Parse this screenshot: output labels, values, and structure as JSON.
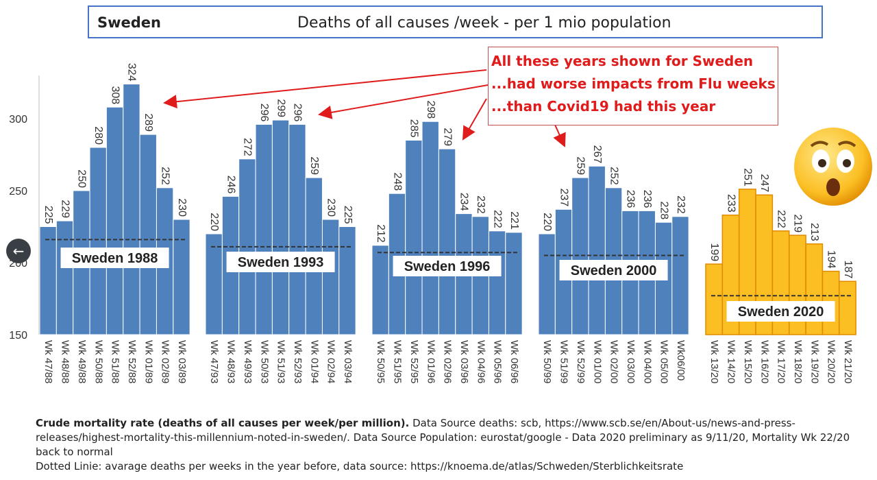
{
  "title": {
    "country": "Sweden",
    "text": "Deaths of all causes /week  - per 1  mio  population"
  },
  "annotation": {
    "lines": [
      "All these years shown for Sweden",
      "...had worse impacts from Flu weeks",
      "...than Covid19 had this year"
    ]
  },
  "colors": {
    "bar_blue": "#4f81bd",
    "bar_yellow": "#fbbf24",
    "annotation_red": "#e01b1b",
    "title_border": "#4472c4"
  },
  "chart_data": {
    "type": "bar",
    "title": "Deaths of all causes /week  - per 1  mio  population",
    "ylim": [
      150,
      330
    ],
    "yticks": [
      150,
      200,
      250,
      300
    ],
    "groups": [
      {
        "name": "Sweden 1988",
        "color": "#4f81bd",
        "average": 216,
        "categories": [
          "Wk 47/88",
          "Wk 48/88",
          "Wk 49/88",
          "Wk 50/88",
          "Wk 51/88",
          "Wk 52/88",
          "Wk 01/89",
          "Wk 02/89",
          "Wk 03/89"
        ],
        "values": [
          225,
          229,
          250,
          280,
          308,
          324,
          289,
          252,
          230
        ]
      },
      {
        "name": "Sweden 1993",
        "color": "#4f81bd",
        "average": 211,
        "categories": [
          "Wk 47/93",
          "Wk 48/93",
          "Wk 49/93",
          "Wk 50/93",
          "Wk 51/93",
          "Wk 52/93",
          "Wk 01/94",
          "Wk 02/94",
          "Wk 03/94"
        ],
        "values": [
          220,
          246,
          272,
          296,
          299,
          296,
          259,
          230,
          225
        ]
      },
      {
        "name": "Sweden 1996",
        "color": "#4f81bd",
        "average": 207,
        "categories": [
          "Wk 50/95",
          "Wk 51/95",
          "Wk 52/95",
          "Wk 01/96",
          "Wk 02/96",
          "Wk 03/96",
          "Wk 04/96",
          "Wk 05/96",
          "Wk 06/96"
        ],
        "values": [
          212,
          248,
          285,
          298,
          279,
          234,
          232,
          222,
          221
        ]
      },
      {
        "name": "Sweden 2000",
        "color": "#4f81bd",
        "average": 205,
        "categories": [
          "Wk 50/99",
          "Wk 51/99",
          "Wk 52/99",
          "Wk 01/00",
          "Wk 02/00",
          "Wk 03/00",
          "Wk 04/00",
          "Wk 05/00",
          "Wk06/00"
        ],
        "values": [
          220,
          237,
          259,
          267,
          252,
          236,
          236,
          228,
          232
        ]
      },
      {
        "name": "Sweden 2020",
        "color": "#fbbf24",
        "average": 177,
        "categories": [
          "Wk 13/20",
          "Wk 14/20",
          "Wk 15/20",
          "Wk 16/20",
          "Wk 17/20",
          "Wk 18/20",
          "Wk 19/20",
          "Wk 20/20",
          "Wk 21/20"
        ],
        "values": [
          199,
          233,
          251,
          247,
          222,
          219,
          213,
          194,
          187
        ]
      }
    ]
  },
  "caption": {
    "bold": "Crude mortality rate (deaths of all causes per week/per million).",
    "line1_rest": " Data Source deaths: scb, https://www.scb.se/en/About-us/news-and-press-releases/highest-mortality-this-millennium-noted-in-sweden/. Data Source Population: eurostat/google -  Data 2020 preliminary as 9/11/20, Mortality Wk 22/20 back to normal",
    "line2": "Dotted Linie: avarage deaths per weeks in the year before, data source: https://knoema.de/atlas/Schweden/Sterblichkeitsrate"
  },
  "nav": {
    "back_icon": "arrow-left-icon",
    "back_glyph": "←"
  },
  "emoji": {
    "icon": "astonished-face-icon"
  }
}
